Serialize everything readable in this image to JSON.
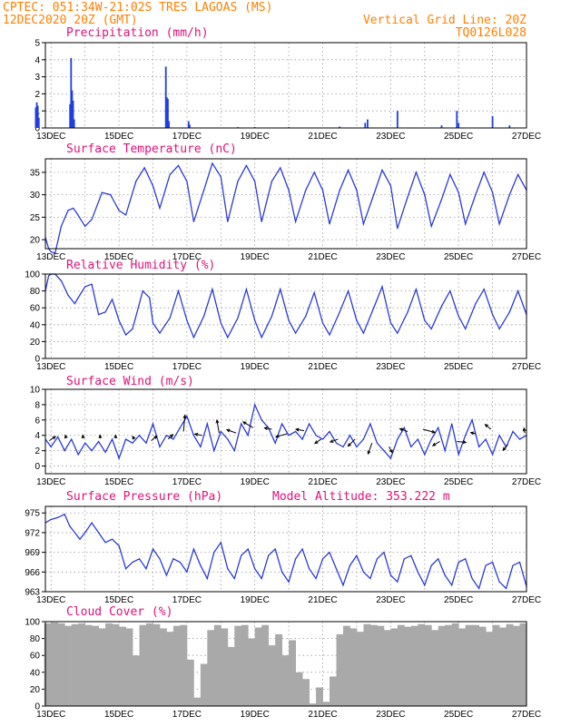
{
  "header": {
    "line1": "CPTEC:  051:34W-21:02S  TRES LAGOAS (MS)",
    "line2": "12DEC2020 20Z (GMT)",
    "grid_note": "Vertical Grid Line: 20Z",
    "code": "TQ0126L028"
  },
  "x_ticks": [
    "13DEC",
    "15DEC",
    "17DEC",
    "19DEC",
    "21DEC",
    "23DEC",
    "25DEC",
    "27DEC"
  ],
  "model_altitude_label": "Model Altitude: 353.222 m",
  "chart_data": [
    {
      "type": "bar",
      "title": "Precipitation (mm/h)",
      "xlim": [
        12.833,
        27.0
      ],
      "ylim": [
        0,
        5
      ],
      "y_ticks": [
        0,
        1,
        2,
        3,
        4,
        5
      ],
      "x": [
        12.55,
        12.58,
        12.61,
        12.64,
        13.56,
        13.59,
        13.62,
        13.65,
        13.68,
        16.38,
        16.41,
        16.44,
        16.47,
        17.05,
        17.08,
        18.5,
        19.0,
        20.0,
        21.5,
        22.25,
        22.32,
        23.2,
        24.5,
        24.95,
        25.0,
        26.0,
        26.5
      ],
      "values": [
        1.2,
        1.5,
        1.3,
        0.6,
        1.4,
        4.1,
        2.2,
        1.6,
        0.5,
        3.6,
        1.8,
        1.7,
        0.4,
        0.4,
        0.2,
        0.05,
        0.05,
        0.05,
        0.08,
        0.3,
        0.5,
        1.0,
        0.15,
        1.0,
        0.3,
        0.7,
        0.15
      ],
      "color": "#1f3fe0",
      "grid": true
    },
    {
      "type": "line",
      "title": "Surface Temperature (nC)",
      "xlim": [
        12.833,
        27.0
      ],
      "ylim": [
        18,
        38
      ],
      "y_ticks": [
        20,
        25,
        30,
        35
      ],
      "x": [
        12.833,
        12.93,
        13.0,
        13.12,
        13.3,
        13.5,
        13.65,
        13.75,
        14.0,
        14.2,
        14.5,
        14.75,
        15.0,
        15.2,
        15.5,
        15.75,
        16.0,
        16.2,
        16.5,
        16.75,
        17.0,
        17.2,
        17.5,
        17.75,
        18.0,
        18.2,
        18.5,
        18.75,
        19.0,
        19.2,
        19.5,
        19.75,
        20.0,
        20.2,
        20.5,
        20.75,
        21.0,
        21.2,
        21.5,
        21.75,
        22.0,
        22.2,
        22.5,
        22.75,
        23.0,
        23.2,
        23.5,
        23.75,
        24.0,
        24.2,
        24.5,
        24.75,
        25.0,
        25.2,
        25.5,
        25.75,
        26.0,
        26.2,
        26.5,
        26.75,
        27.0
      ],
      "values": [
        20.5,
        18.0,
        17.3,
        17.0,
        23.0,
        26.5,
        27.0,
        26.0,
        23.0,
        24.5,
        30.5,
        30.0,
        26.5,
        25.5,
        33.0,
        36.0,
        32.0,
        27.0,
        34.5,
        36.5,
        33.0,
        24.0,
        31.0,
        37.0,
        34.0,
        24.0,
        33.0,
        36.5,
        33.0,
        24.0,
        33.0,
        36.0,
        31.0,
        24.0,
        31.0,
        35.0,
        31.0,
        23.5,
        31.0,
        35.5,
        31.0,
        23.5,
        30.0,
        35.5,
        32.0,
        22.5,
        29.5,
        35.0,
        30.0,
        23.0,
        29.0,
        34.5,
        30.5,
        23.5,
        30.0,
        35.0,
        30.5,
        23.5,
        30.0,
        34.5,
        31.0
      ],
      "color": "#2b3bd6",
      "grid": true
    },
    {
      "type": "line",
      "title": "Relative Humidity (%)",
      "xlim": [
        12.833,
        27.0
      ],
      "ylim": [
        0,
        100
      ],
      "y_ticks": [
        0,
        20,
        40,
        60,
        80,
        100
      ],
      "x": [
        12.833,
        12.93,
        13.0,
        13.12,
        13.3,
        13.5,
        13.7,
        13.8,
        14.0,
        14.2,
        14.4,
        14.6,
        14.8,
        15.0,
        15.2,
        15.4,
        15.7,
        15.9,
        16.0,
        16.2,
        16.5,
        16.75,
        17.0,
        17.2,
        17.5,
        17.75,
        18.0,
        18.2,
        18.5,
        18.75,
        19.0,
        19.2,
        19.5,
        19.75,
        20.0,
        20.2,
        20.5,
        20.75,
        21.0,
        21.2,
        21.5,
        21.75,
        22.0,
        22.2,
        22.5,
        22.75,
        23.0,
        23.2,
        23.5,
        23.75,
        24.0,
        24.2,
        24.5,
        24.75,
        25.0,
        25.2,
        25.5,
        25.75,
        26.0,
        26.2,
        26.5,
        26.75,
        27.0
      ],
      "values": [
        80.0,
        98.0,
        100.0,
        100.0,
        92.0,
        75.0,
        65.0,
        72.0,
        85.0,
        88.0,
        52.0,
        55.0,
        70.0,
        45.0,
        28.0,
        35.0,
        80.0,
        72.0,
        42.0,
        30.0,
        48.0,
        80.0,
        45.0,
        25.0,
        50.0,
        82.0,
        42.0,
        25.0,
        48.0,
        82.0,
        45.0,
        25.0,
        50.0,
        82.0,
        45.0,
        30.0,
        50.0,
        78.0,
        42.0,
        28.0,
        55.0,
        80.0,
        45.0,
        30.0,
        60.0,
        85.0,
        42.0,
        30.0,
        55.0,
        82.0,
        45.0,
        35.0,
        62.0,
        80.0,
        50.0,
        35.0,
        65.0,
        82.0,
        52.0,
        35.0,
        55.0,
        80.0,
        52.0
      ],
      "color": "#2b3bd6",
      "grid": true
    },
    {
      "type": "line",
      "title": "Surface Wind (m/s)",
      "xlim": [
        12.833,
        27.0
      ],
      "ylim": [
        -1,
        10
      ],
      "y_ticks": [
        0,
        2,
        4,
        6,
        8,
        10
      ],
      "x": [
        12.833,
        13.0,
        13.2,
        13.4,
        13.6,
        13.8,
        14.0,
        14.2,
        14.4,
        14.6,
        14.8,
        15.0,
        15.2,
        15.4,
        15.6,
        15.8,
        16.0,
        16.2,
        16.4,
        16.6,
        16.8,
        17.0,
        17.2,
        17.4,
        17.6,
        17.8,
        18.0,
        18.2,
        18.4,
        18.6,
        18.8,
        19.0,
        19.2,
        19.4,
        19.6,
        19.8,
        20.0,
        20.2,
        20.4,
        20.6,
        20.8,
        21.0,
        21.2,
        21.4,
        21.6,
        21.8,
        22.0,
        22.2,
        22.4,
        22.6,
        22.8,
        23.0,
        23.2,
        23.4,
        23.6,
        23.8,
        24.0,
        24.2,
        24.4,
        24.6,
        24.8,
        25.0,
        25.2,
        25.4,
        25.6,
        25.8,
        26.0,
        26.2,
        26.4,
        26.6,
        26.8,
        27.0
      ],
      "values": [
        3.5,
        2.5,
        3.8,
        2.0,
        3.5,
        1.5,
        3.0,
        2.0,
        3.2,
        1.8,
        3.5,
        1.0,
        3.5,
        3.0,
        4.0,
        3.0,
        5.5,
        2.5,
        4.0,
        3.5,
        5.0,
        6.5,
        4.0,
        2.5,
        5.5,
        2.0,
        4.5,
        3.5,
        2.0,
        5.5,
        4.0,
        8.0,
        6.0,
        5.0,
        3.0,
        5.5,
        4.0,
        4.5,
        3.5,
        5.5,
        4.0,
        3.5,
        4.5,
        3.0,
        2.5,
        4.0,
        2.5,
        3.5,
        5.5,
        3.0,
        2.0,
        1.0,
        3.5,
        5.0,
        2.5,
        3.5,
        1.5,
        3.5,
        5.0,
        2.0,
        5.5,
        1.5,
        4.0,
        6.0,
        2.5,
        3.5,
        1.5,
        4.0,
        2.5,
        4.5,
        3.5,
        4.0
      ],
      "color": "#2b3bd6",
      "grid": true,
      "vectors": [
        {
          "x": 12.95,
          "y": 3.3,
          "angle": 35,
          "len": 0.9
        },
        {
          "x": 13.45,
          "y": 3.6,
          "angle": 110,
          "len": 0.4
        },
        {
          "x": 13.95,
          "y": 3.6,
          "angle": 100,
          "len": 0.4
        },
        {
          "x": 14.45,
          "y": 3.6,
          "angle": 95,
          "len": 0.4
        },
        {
          "x": 14.9,
          "y": 3.6,
          "angle": 90,
          "len": 0.4
        },
        {
          "x": 15.45,
          "y": 3.5,
          "angle": 120,
          "len": 0.4
        },
        {
          "x": 15.95,
          "y": 3.3,
          "angle": 40,
          "len": 0.9
        },
        {
          "x": 16.45,
          "y": 3.5,
          "angle": 45,
          "len": 0.8
        },
        {
          "x": 16.9,
          "y": 4.5,
          "angle": 85,
          "len": 2.0
        },
        {
          "x": 17.45,
          "y": 4.0,
          "angle": 170,
          "len": 0.9
        },
        {
          "x": 17.95,
          "y": 4.3,
          "angle": 100,
          "len": 1.6
        },
        {
          "x": 18.45,
          "y": 4.3,
          "angle": 160,
          "len": 1.2
        },
        {
          "x": 18.95,
          "y": 5.0,
          "angle": 150,
          "len": 1.4
        },
        {
          "x": 19.5,
          "y": 4.8,
          "angle": 170,
          "len": 0.9
        },
        {
          "x": 19.95,
          "y": 4.2,
          "angle": 195,
          "len": 1.4
        },
        {
          "x": 20.45,
          "y": 4.6,
          "angle": 170,
          "len": 1.0
        },
        {
          "x": 20.95,
          "y": 3.5,
          "angle": 215,
          "len": 0.9
        },
        {
          "x": 21.45,
          "y": 3.5,
          "angle": 200,
          "len": 1.0
        },
        {
          "x": 21.95,
          "y": 3.5,
          "angle": 225,
          "len": 1.2
        },
        {
          "x": 22.45,
          "y": 3.0,
          "angle": 250,
          "len": 1.4
        },
        {
          "x": 22.95,
          "y": 2.5,
          "angle": 300,
          "len": 0.8
        },
        {
          "x": 23.5,
          "y": 4.5,
          "angle": 160,
          "len": 1.0
        },
        {
          "x": 23.95,
          "y": 4.8,
          "angle": 345,
          "len": 1.5
        },
        {
          "x": 24.45,
          "y": 3.2,
          "angle": 210,
          "len": 1.0
        },
        {
          "x": 24.95,
          "y": 3.2,
          "angle": 355,
          "len": 1.1
        },
        {
          "x": 25.5,
          "y": 4.2,
          "angle": 165,
          "len": 0.6
        },
        {
          "x": 25.95,
          "y": 4.8,
          "angle": 140,
          "len": 0.9
        },
        {
          "x": 26.45,
          "y": 2.8,
          "angle": 230,
          "len": 0.9
        },
        {
          "x": 26.95,
          "y": 4.3,
          "angle": 100,
          "len": 0.6
        }
      ]
    },
    {
      "type": "line",
      "title": "Surface Pressure (hPa)",
      "xlim": [
        12.833,
        27.0
      ],
      "ylim": [
        963,
        976
      ],
      "y_ticks": [
        963,
        966,
        969,
        972,
        975
      ],
      "x": [
        12.833,
        13.0,
        13.2,
        13.4,
        13.55,
        13.7,
        13.85,
        14.0,
        14.2,
        14.4,
        14.6,
        14.8,
        15.0,
        15.2,
        15.4,
        15.6,
        15.8,
        16.0,
        16.2,
        16.4,
        16.6,
        16.8,
        17.0,
        17.2,
        17.4,
        17.6,
        17.8,
        18.0,
        18.2,
        18.4,
        18.6,
        18.8,
        19.0,
        19.2,
        19.4,
        19.6,
        19.8,
        20.0,
        20.2,
        20.4,
        20.6,
        20.8,
        21.0,
        21.2,
        21.4,
        21.6,
        21.8,
        22.0,
        22.2,
        22.4,
        22.6,
        22.8,
        23.0,
        23.2,
        23.4,
        23.6,
        23.8,
        24.0,
        24.2,
        24.4,
        24.6,
        24.8,
        25.0,
        25.2,
        25.4,
        25.6,
        25.8,
        26.0,
        26.2,
        26.4,
        26.6,
        26.8,
        27.0
      ],
      "values": [
        973.5,
        974.0,
        974.3,
        974.8,
        973.0,
        972.0,
        971.0,
        972.0,
        973.5,
        972.0,
        970.5,
        971.0,
        970.0,
        966.5,
        967.5,
        968.0,
        966.5,
        969.5,
        968.0,
        965.5,
        968.0,
        967.5,
        966.0,
        969.5,
        967.0,
        965.0,
        969.0,
        970.5,
        966.5,
        965.0,
        968.5,
        969.5,
        966.5,
        965.0,
        968.5,
        969.5,
        966.0,
        964.5,
        968.0,
        969.5,
        966.5,
        965.0,
        968.0,
        969.0,
        966.5,
        964.0,
        967.0,
        968.5,
        966.0,
        965.0,
        968.0,
        969.0,
        965.5,
        964.5,
        968.0,
        968.5,
        966.0,
        964.0,
        967.0,
        968.0,
        965.5,
        964.0,
        967.5,
        968.0,
        965.0,
        963.5,
        967.0,
        967.5,
        964.5,
        963.5,
        967.0,
        967.5,
        963.8
      ],
      "color": "#2b3bd6",
      "grid": true
    },
    {
      "type": "bar",
      "title": "Cloud Cover (%)",
      "xlim": [
        12.833,
        27.0
      ],
      "ylim": [
        0,
        100
      ],
      "y_ticks": [
        0,
        20,
        40,
        60,
        80,
        100
      ],
      "x": [
        12.9,
        13.1,
        13.3,
        13.5,
        13.7,
        13.9,
        14.1,
        14.3,
        14.5,
        14.7,
        14.9,
        15.1,
        15.3,
        15.5,
        15.7,
        15.9,
        16.1,
        16.3,
        16.5,
        16.7,
        16.9,
        17.1,
        17.3,
        17.5,
        17.7,
        17.9,
        18.1,
        18.3,
        18.5,
        18.7,
        18.9,
        19.1,
        19.3,
        19.5,
        19.7,
        19.9,
        20.1,
        20.3,
        20.5,
        20.7,
        20.9,
        21.1,
        21.3,
        21.5,
        21.7,
        21.9,
        22.1,
        22.3,
        22.5,
        22.7,
        22.9,
        23.1,
        23.3,
        23.5,
        23.7,
        23.9,
        24.1,
        24.3,
        24.5,
        24.7,
        24.9,
        25.1,
        25.3,
        25.5,
        25.7,
        25.9,
        26.1,
        26.3,
        26.5,
        26.7,
        26.9
      ],
      "values": [
        98,
        99,
        98,
        95,
        97,
        98,
        96,
        95,
        92,
        98,
        97,
        94,
        92,
        60,
        96,
        98,
        97,
        92,
        88,
        95,
        96,
        55,
        10,
        50,
        90,
        96,
        92,
        70,
        95,
        96,
        80,
        93,
        96,
        72,
        85,
        60,
        78,
        40,
        32,
        3,
        22,
        5,
        35,
        85,
        95,
        92,
        88,
        97,
        96,
        95,
        90,
        92,
        96,
        94,
        95,
        97,
        96,
        90,
        95,
        96,
        98,
        92,
        96,
        96,
        94,
        88,
        96,
        93,
        97,
        95,
        98
      ],
      "color": "#a9a9a9",
      "grid": true
    }
  ]
}
